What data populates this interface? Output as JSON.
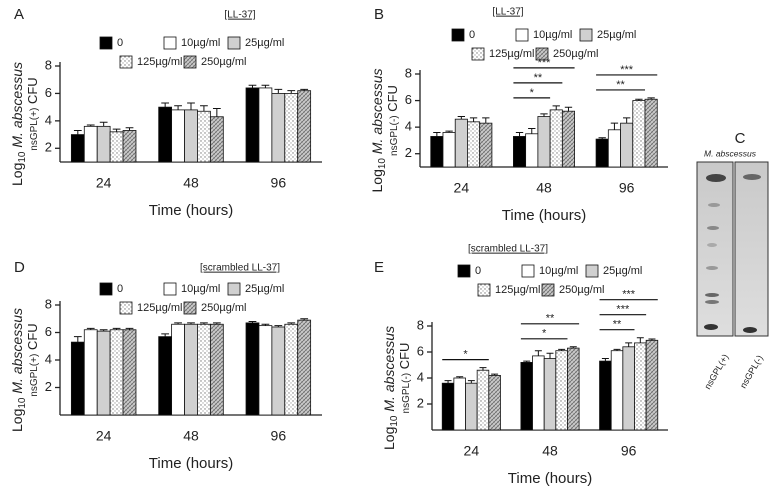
{
  "chart_data": [
    {
      "type": "bar",
      "panel_label": "A",
      "title": "[LL-37]",
      "categories": [
        "24",
        "48",
        "96"
      ],
      "xlabel": "Time (hours)",
      "ylabel": {
        "prefix": "Log",
        "sub": "10",
        "italic": " M. abscessus",
        "sub2": "nsGPL(+)",
        "suffix": " CFU"
      },
      "ylim": [
        1,
        8
      ],
      "yticks": [
        2,
        4,
        6,
        8
      ],
      "series": [
        {
          "name": "0",
          "color": "#000000",
          "values": [
            3.0,
            5.0,
            6.4
          ],
          "errors": [
            0.3,
            0.3,
            0.2
          ]
        },
        {
          "name": "10µg/ml",
          "color": "#ffffff",
          "values": [
            3.6,
            4.8,
            6.4
          ],
          "errors": [
            0.1,
            0.3,
            0.2
          ]
        },
        {
          "name": "25µg/ml",
          "color": "#d0d0d0",
          "values": [
            3.6,
            4.8,
            6.0
          ],
          "errors": [
            0.3,
            0.5,
            0.3
          ]
        },
        {
          "name": "125µg/ml",
          "color": "url(#dots)",
          "values": [
            3.2,
            4.7,
            6.0
          ],
          "errors": [
            0.2,
            0.4,
            0.2
          ]
        },
        {
          "name": "250µg/ml",
          "color": "url(#hatch)",
          "values": [
            3.3,
            4.3,
            6.2
          ],
          "errors": [
            0.2,
            0.6,
            0.1
          ]
        }
      ],
      "brackets": []
    },
    {
      "type": "bar",
      "panel_label": "B",
      "title": "[LL-37]",
      "categories": [
        "24",
        "48",
        "96"
      ],
      "xlabel": "Time (hours)",
      "ylabel": {
        "prefix": "Log",
        "sub": "10",
        "italic": " M. abscessus",
        "sub2": "nsGPL(-)",
        "suffix": " CFU"
      },
      "ylim": [
        1,
        8
      ],
      "yticks": [
        2,
        4,
        6,
        8
      ],
      "series": [
        {
          "name": "0",
          "color": "#000000",
          "values": [
            3.3,
            3.3,
            3.1
          ],
          "errors": [
            0.3,
            0.3,
            0.1
          ]
        },
        {
          "name": "10µg/ml",
          "color": "#ffffff",
          "values": [
            3.6,
            3.5,
            3.8
          ],
          "errors": [
            0.1,
            0.4,
            0.5
          ]
        },
        {
          "name": "25µg/ml",
          "color": "#d0d0d0",
          "values": [
            4.6,
            4.8,
            4.3
          ],
          "errors": [
            0.2,
            0.2,
            0.4
          ]
        },
        {
          "name": "125µg/ml",
          "color": "url(#dots)",
          "values": [
            4.4,
            5.3,
            6.0
          ],
          "errors": [
            0.3,
            0.3,
            0.1
          ]
        },
        {
          "name": "250µg/ml",
          "color": "url(#hatch)",
          "values": [
            4.3,
            5.2,
            6.1
          ],
          "errors": [
            0.4,
            0.3,
            0.1
          ]
        }
      ],
      "brackets": [
        {
          "label": "*",
          "category": "48",
          "from": "0",
          "to": "25µg/ml"
        },
        {
          "label": "**",
          "category": "48",
          "from": "0",
          "to": "125µg/ml"
        },
        {
          "label": "***",
          "category": "48",
          "from": "0",
          "to": "250µg/ml"
        },
        {
          "label": "**",
          "category": "96",
          "from": "0",
          "to": "125µg/ml"
        },
        {
          "label": "***",
          "category": "96",
          "from": "0",
          "to": "250µg/ml"
        }
      ]
    },
    {
      "type": "bar",
      "panel_label": "D",
      "title": "[scrambled LL-37]",
      "categories": [
        "24",
        "48",
        "96"
      ],
      "xlabel": "Time (hours)",
      "ylabel": {
        "prefix": "Log",
        "sub": "10",
        "italic": " M. abscessus",
        "sub2": "nsGPL(+)",
        "suffix": " CFU"
      },
      "ylim": [
        0,
        8
      ],
      "yticks": [
        2,
        4,
        6,
        8
      ],
      "series": [
        {
          "name": "0",
          "color": "#000000",
          "values": [
            5.3,
            5.7,
            6.7
          ],
          "errors": [
            0.4,
            0.2,
            0.1
          ]
        },
        {
          "name": "10µg/ml",
          "color": "#ffffff",
          "values": [
            6.2,
            6.6,
            6.5
          ],
          "errors": [
            0.1,
            0.1,
            0.1
          ]
        },
        {
          "name": "25µg/ml",
          "color": "#d0d0d0",
          "values": [
            6.1,
            6.6,
            6.4
          ],
          "errors": [
            0.1,
            0.1,
            0.1
          ]
        },
        {
          "name": "125µg/ml",
          "color": "url(#dots)",
          "values": [
            6.2,
            6.6,
            6.6
          ],
          "errors": [
            0.1,
            0.1,
            0.1
          ]
        },
        {
          "name": "250µg/ml",
          "color": "url(#hatch)",
          "values": [
            6.2,
            6.6,
            6.9
          ],
          "errors": [
            0.1,
            0.1,
            0.1
          ]
        }
      ],
      "brackets": []
    },
    {
      "type": "bar",
      "panel_label": "E",
      "title": "[scrambled LL-37]",
      "categories": [
        "24",
        "48",
        "96"
      ],
      "xlabel": "Time (hours)",
      "ylabel": {
        "prefix": "Log",
        "sub": "10",
        "italic": " M. abscessus",
        "sub2": "nsGPL(-)",
        "suffix": " CFU"
      },
      "ylim": [
        0,
        8
      ],
      "yticks": [
        2,
        4,
        6,
        8
      ],
      "series": [
        {
          "name": "0",
          "color": "#000000",
          "values": [
            3.6,
            5.2,
            5.3
          ],
          "errors": [
            0.2,
            0.1,
            0.2
          ]
        },
        {
          "name": "10µg/ml",
          "color": "#ffffff",
          "values": [
            4.0,
            5.7,
            6.1
          ],
          "errors": [
            0.1,
            0.4,
            0.1
          ]
        },
        {
          "name": "25µg/ml",
          "color": "#d0d0d0",
          "values": [
            3.6,
            5.5,
            6.4
          ],
          "errors": [
            0.2,
            0.4,
            0.3
          ]
        },
        {
          "name": "125µg/ml",
          "color": "url(#dots)",
          "values": [
            4.6,
            6.1,
            6.7
          ],
          "errors": [
            0.2,
            0.1,
            0.4
          ]
        },
        {
          "name": "250µg/ml",
          "color": "url(#hatch)",
          "values": [
            4.2,
            6.3,
            6.9
          ],
          "errors": [
            0.1,
            0.1,
            0.1
          ]
        }
      ],
      "brackets": [
        {
          "label": "*",
          "category": "24",
          "from": "0",
          "to": "125µg/ml"
        },
        {
          "label": "*",
          "category": "48",
          "from": "0",
          "to": "125µg/ml"
        },
        {
          "label": "**",
          "category": "48",
          "from": "0",
          "to": "250µg/ml"
        },
        {
          "label": "**",
          "category": "96",
          "from": "0",
          "to": "25µg/ml"
        },
        {
          "label": "***",
          "category": "96",
          "from": "0",
          "to": "125µg/ml"
        },
        {
          "label": "***",
          "category": "96",
          "from": "0",
          "to": "250µg/ml"
        }
      ]
    }
  ],
  "tlc": {
    "panel_label": "C",
    "title": "M. abscessus",
    "lanes": [
      "nsGPL(+)",
      "nsGPL(-)"
    ]
  }
}
